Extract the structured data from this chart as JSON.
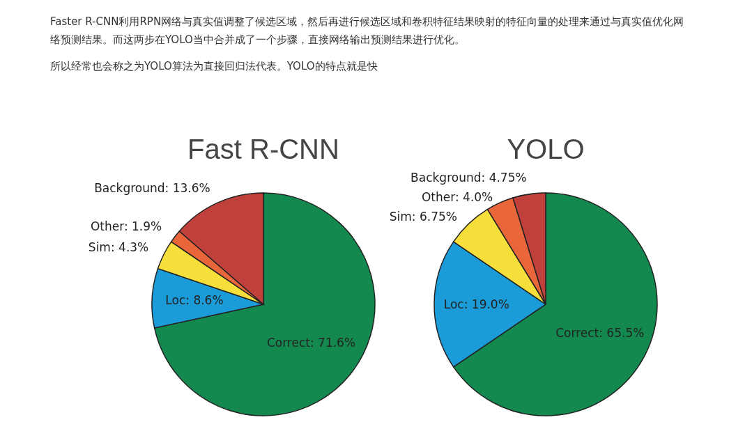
{
  "chart_data": [
    {
      "type": "other",
      "annotations": [
        "Faster R-CNN利用RPN网络与真实值调整了候选区域，然后再进行候选区域和卷积特征结果映射的特征向量的处理来通过与真实值优化网络预测结果。而这两步在YOLO当中合并成了一个步骤，直接网络输出预测结果进行优化。",
        "所以经常也会称之为YOLO算法为直接回归法代表。YOLO的特点就是快"
      ]
    },
    {
      "type": "pie",
      "title": "Fast R-CNN",
      "categories": [
        "Correct",
        "Loc",
        "Sim",
        "Other",
        "Background"
      ],
      "values": [
        71.6,
        8.6,
        4.3,
        1.9,
        13.6
      ],
      "value_labels": [
        "71.6%",
        "8.6%",
        "4.3%",
        "1.9%",
        "13.6%"
      ],
      "colors": [
        "#13894f",
        "#1b9bd7",
        "#f7df3b",
        "#e8663a",
        "#c0403b"
      ]
    },
    {
      "type": "pie",
      "title": "YOLO",
      "categories": [
        "Correct",
        "Loc",
        "Sim",
        "Other",
        "Background"
      ],
      "values": [
        65.5,
        19.0,
        6.75,
        4.0,
        4.75
      ],
      "value_labels": [
        "65.5%",
        "19.0%",
        "6.75%",
        "4.0%",
        "4.75%"
      ],
      "colors": [
        "#13894f",
        "#1b9bd7",
        "#f7df3b",
        "#e8663a",
        "#c0403b"
      ]
    }
  ]
}
